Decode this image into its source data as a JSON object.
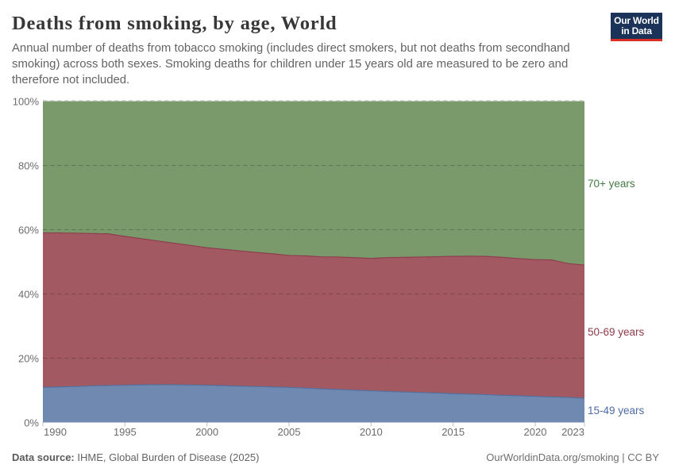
{
  "header": {
    "title": "Deaths from smoking, by age, World",
    "subtitle_lines": [
      "Annual number of deaths from tobacco smoking (includes direct smokers, but not deaths from secondhand",
      "smoking) across both sexes. Smoking deaths for children under 15 years old are measured to be zero and",
      "therefore not included."
    ]
  },
  "logo": {
    "line1": "Our World",
    "line2": "in Data",
    "bg_color": "#1b3358",
    "accent_color": "#dc3026"
  },
  "footer": {
    "source_label": "Data source:",
    "source_value": " IHME, Global Burden of Disease (2025)",
    "note": "OurWorldinData.org/smoking | CC BY"
  },
  "chart_data": {
    "type": "area",
    "stacked": true,
    "unit": "percent share of smoking deaths",
    "ylim": [
      0,
      100
    ],
    "grid": "dotted-horizontal",
    "legend_position": "right-edge-labels",
    "x": [
      1990,
      1991,
      1992,
      1993,
      1994,
      1995,
      1996,
      1997,
      1998,
      1999,
      2000,
      2001,
      2002,
      2003,
      2004,
      2005,
      2006,
      2007,
      2008,
      2009,
      2010,
      2011,
      2012,
      2013,
      2014,
      2015,
      2016,
      2017,
      2018,
      2019,
      2020,
      2021,
      2022,
      2023
    ],
    "xticks": [
      1990,
      1995,
      2000,
      2005,
      2010,
      2015,
      2020,
      2023
    ],
    "yticks": [
      {
        "value": 0,
        "label": "0%"
      },
      {
        "value": 20,
        "label": "20%"
      },
      {
        "value": 40,
        "label": "40%"
      },
      {
        "value": 60,
        "label": "60%"
      },
      {
        "value": 80,
        "label": "80%"
      },
      {
        "value": 100,
        "label": "100%"
      }
    ],
    "series": [
      {
        "name": "15-49 years",
        "color": "#7089B1",
        "line_color": "#52709e",
        "label_color": "#4d6ba8",
        "values": [
          10.9,
          11.05,
          11.2,
          11.4,
          11.5,
          11.6,
          11.7,
          11.75,
          11.75,
          11.65,
          11.55,
          11.45,
          11.3,
          11.2,
          11.05,
          10.9,
          10.7,
          10.45,
          10.25,
          10.05,
          9.85,
          9.65,
          9.5,
          9.3,
          9.15,
          8.95,
          8.8,
          8.65,
          8.45,
          8.3,
          8.1,
          7.95,
          7.8,
          7.55
        ]
      },
      {
        "name": "50-69 years",
        "color": "#A25962",
        "line_color": "#8e3d4c",
        "label_color": "#8e3a48",
        "values": [
          48.1,
          47.95,
          47.7,
          47.4,
          47.2,
          46.3,
          45.5,
          44.75,
          44.05,
          43.45,
          42.85,
          42.45,
          42.1,
          41.7,
          41.45,
          41.1,
          41.15,
          41.1,
          41.25,
          41.25,
          41.2,
          41.65,
          41.9,
          42.2,
          42.45,
          42.75,
          42.95,
          43.05,
          42.95,
          42.7,
          42.6,
          42.65,
          41.65,
          41.45
        ]
      },
      {
        "name": "70+ years",
        "color": "#7A9A6C",
        "line_color": "#7A9A6C",
        "label_color": "#447a45",
        "values": [
          41.0,
          41.0,
          41.1,
          41.2,
          41.3,
          42.1,
          42.8,
          43.5,
          44.2,
          44.9,
          45.6,
          46.1,
          46.6,
          47.1,
          47.5,
          48.0,
          48.15,
          48.45,
          48.5,
          48.7,
          48.95,
          48.7,
          48.6,
          48.5,
          48.4,
          48.3,
          48.25,
          48.3,
          48.6,
          49.0,
          49.3,
          49.4,
          50.55,
          51.0
        ]
      }
    ]
  }
}
